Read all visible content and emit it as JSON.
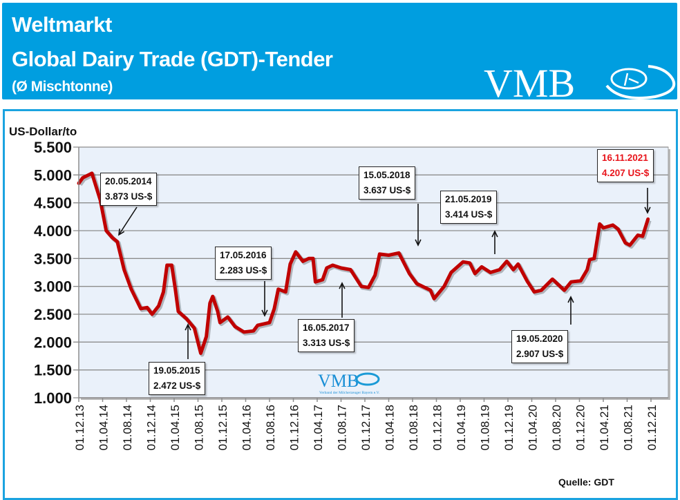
{
  "header": {
    "title_line1": "Weltmarkt",
    "title_line2": "Global Dairy Trade (GDT)-Tender",
    "subtitle": "(Ø Mischtonne)",
    "logo_text": "VMB",
    "background_color": "#009ee0"
  },
  "watermark": {
    "logo_text": "VMB",
    "tagline": "Verband der Milcherzeuger Bayern e.V."
  },
  "source": "Quelle: GDT",
  "chart_data": {
    "type": "line",
    "title": "Weltmarkt Global Dairy Trade (GDT)-Tender",
    "ylabel": "US-Dollar/to",
    "xlabel": "",
    "ylim": [
      1000,
      5500
    ],
    "xlim": [
      "2013-12-01",
      "2022-02-28"
    ],
    "grid": true,
    "line_color": "#c00000",
    "plot_background": "#eaf1fa",
    "y_ticks": [
      "1.000",
      "1.500",
      "2.000",
      "2.500",
      "3.000",
      "3.500",
      "4.000",
      "4.500",
      "5.000",
      "5.500"
    ],
    "y_tick_values": [
      1000,
      1500,
      2000,
      2500,
      3000,
      3500,
      4000,
      4500,
      5000,
      5500
    ],
    "x_ticks": [
      "01.12.13",
      "01.04.14",
      "01.08.14",
      "01.12.14",
      "01.04.15",
      "01.08.15",
      "01.12.15",
      "01.04.16",
      "01.08.16",
      "01.12.16",
      "01.04.17",
      "01.08.17",
      "01.12.17",
      "01.04.18",
      "01.08.18",
      "01.12.18",
      "01.04.19",
      "01.08.19",
      "01.12.19",
      "01.04.20",
      "01.08.20",
      "01.12.20",
      "01.04.21",
      "01.08.21",
      "01.12.21"
    ],
    "series": [
      {
        "points": [
          [
            "2013-12-01",
            4850
          ],
          [
            "2013-12-21",
            4950
          ],
          [
            "2014-02-07",
            5030
          ],
          [
            "2014-03-19",
            4550
          ],
          [
            "2014-04-19",
            4000
          ],
          [
            "2014-05-20",
            3873
          ],
          [
            "2014-06-15",
            3800
          ],
          [
            "2014-07-19",
            3300
          ],
          [
            "2014-08-25",
            2950
          ],
          [
            "2014-10-13",
            2600
          ],
          [
            "2014-11-15",
            2620
          ],
          [
            "2014-12-10",
            2500
          ],
          [
            "2015-01-13",
            2650
          ],
          [
            "2015-02-07",
            2900
          ],
          [
            "2015-02-25",
            3380
          ],
          [
            "2015-03-19",
            3380
          ],
          [
            "2015-04-07",
            2950
          ],
          [
            "2015-04-22",
            2550
          ],
          [
            "2015-06-03",
            2420
          ],
          [
            "2015-07-13",
            2250
          ],
          [
            "2015-08-15",
            1800
          ],
          [
            "2015-09-13",
            2100
          ],
          [
            "2015-10-01",
            2700
          ],
          [
            "2015-10-15",
            2820
          ],
          [
            "2015-11-10",
            2550
          ],
          [
            "2015-11-22",
            2350
          ],
          [
            "2016-01-01",
            2450
          ],
          [
            "2016-02-07",
            2280
          ],
          [
            "2016-03-22",
            2180
          ],
          [
            "2016-05-10",
            2200
          ],
          [
            "2016-06-01",
            2300
          ],
          [
            "2016-08-01",
            2350
          ],
          [
            "2016-08-25",
            2600
          ],
          [
            "2016-09-15",
            2950
          ],
          [
            "2016-10-22",
            2900
          ],
          [
            "2016-11-15",
            3400
          ],
          [
            "2016-12-13",
            3620
          ],
          [
            "2017-01-19",
            3450
          ],
          [
            "2017-02-19",
            3500
          ],
          [
            "2017-03-10",
            3500
          ],
          [
            "2017-03-22",
            3080
          ],
          [
            "2017-04-28",
            3120
          ],
          [
            "2017-05-19",
            3330
          ],
          [
            "2017-06-19",
            3380
          ],
          [
            "2017-08-01",
            3330
          ],
          [
            "2017-09-19",
            3300
          ],
          [
            "2017-11-13",
            3000
          ],
          [
            "2017-12-19",
            2980
          ],
          [
            "2018-01-22",
            3200
          ],
          [
            "2018-02-15",
            3580
          ],
          [
            "2018-04-01",
            3560
          ],
          [
            "2018-05-22",
            3600
          ],
          [
            "2018-07-15",
            3230
          ],
          [
            "2018-08-22",
            3050
          ],
          [
            "2018-11-01",
            2930
          ],
          [
            "2018-11-19",
            2780
          ],
          [
            "2019-01-10",
            3000
          ],
          [
            "2019-02-15",
            3250
          ],
          [
            "2019-04-15",
            3440
          ],
          [
            "2019-05-19",
            3420
          ],
          [
            "2019-06-15",
            3230
          ],
          [
            "2019-07-19",
            3350
          ],
          [
            "2019-09-03",
            3250
          ],
          [
            "2019-10-19",
            3300
          ],
          [
            "2019-11-25",
            3450
          ],
          [
            "2019-12-28",
            3300
          ],
          [
            "2020-01-22",
            3400
          ],
          [
            "2020-03-07",
            3100
          ],
          [
            "2020-04-13",
            2900
          ],
          [
            "2020-05-19",
            2930
          ],
          [
            "2020-07-15",
            3130
          ],
          [
            "2020-09-15",
            2930
          ],
          [
            "2020-10-19",
            3080
          ],
          [
            "2020-12-07",
            3100
          ],
          [
            "2021-01-10",
            3300
          ],
          [
            "2021-01-22",
            3480
          ],
          [
            "2021-02-15",
            3500
          ],
          [
            "2021-03-13",
            4120
          ],
          [
            "2021-04-01",
            4050
          ],
          [
            "2021-05-19",
            4100
          ],
          [
            "2021-06-15",
            4030
          ],
          [
            "2021-07-22",
            3780
          ],
          [
            "2021-08-15",
            3740
          ],
          [
            "2021-09-25",
            3920
          ],
          [
            "2021-10-19",
            3900
          ],
          [
            "2021-11-16",
            4207
          ]
        ]
      }
    ],
    "annotations": [
      {
        "date": "20.05.2014",
        "value": "3.873 US-$",
        "highlight": false
      },
      {
        "date": "19.05.2015",
        "value": "2.472 US-$",
        "highlight": false
      },
      {
        "date": "17.05.2016",
        "value": "2.283 US-$",
        "highlight": false
      },
      {
        "date": "16.05.2017",
        "value": "3.313 US-$",
        "highlight": false
      },
      {
        "date": "15.05.2018",
        "value": "3.637 US-$",
        "highlight": false
      },
      {
        "date": "21.05.2019",
        "value": "3.414 US-$",
        "highlight": false
      },
      {
        "date": "19.05.2020",
        "value": "2.907 US-$",
        "highlight": false
      },
      {
        "date": "16.11.2021",
        "value": "4.207 US-$",
        "highlight": true,
        "color": "#e8141b"
      }
    ]
  }
}
